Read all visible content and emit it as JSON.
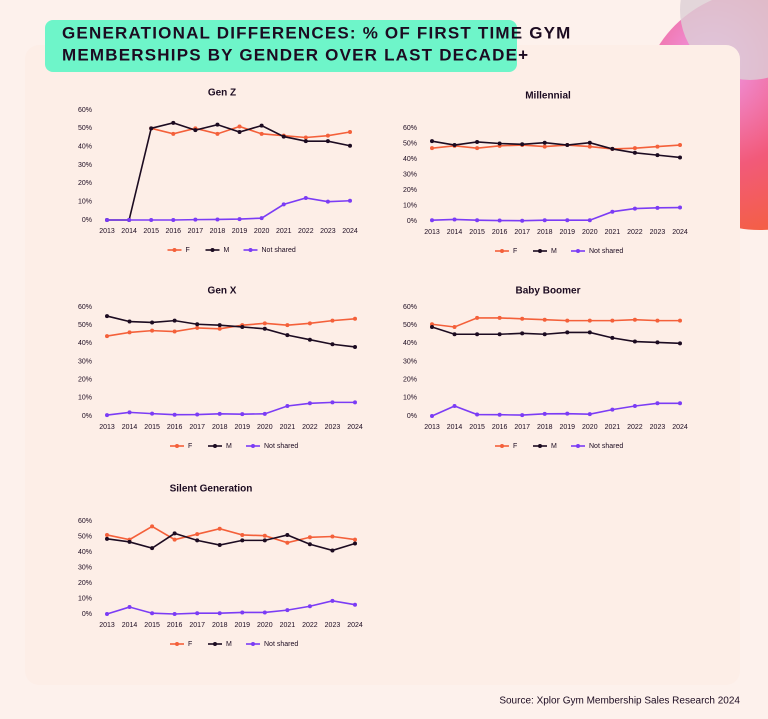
{
  "header": {
    "title_lines": [
      "GENERATIONAL DIFFERENCES: % OF FIRST TIME GYM",
      "MEMBERSHIPS BY GENDER OVER LAST DECADE+"
    ]
  },
  "source": "Source: Xplor Gym Membership Sales Research 2024",
  "chart_data": [
    {
      "type": "line",
      "title": "Gen Z",
      "categories": [
        "2013",
        "2014",
        "2015",
        "2016",
        "2017",
        "2018",
        "2019",
        "2020",
        "2021",
        "2022",
        "2023",
        "2024"
      ],
      "ylim": [
        0,
        60
      ],
      "yticks": [
        {
          "value": 0,
          "label": "0%"
        },
        {
          "value": 10,
          "label": "10%"
        },
        {
          "value": 20,
          "label": "20%"
        },
        {
          "value": 30,
          "label": "30%"
        },
        {
          "value": 40,
          "label": "40%"
        },
        {
          "value": 50,
          "label": "50%"
        },
        {
          "value": 60,
          "label": "60%"
        }
      ],
      "series": [
        {
          "name": "F",
          "color": "#f4603a",
          "values": [
            null,
            null,
            50,
            47,
            50,
            47,
            51,
            47,
            46,
            45,
            46,
            48
          ]
        },
        {
          "name": "M",
          "color": "#1c0b21",
          "values": [
            0,
            0,
            50,
            53,
            49,
            52,
            48,
            51.5,
            45.5,
            43,
            43,
            40.5
          ]
        },
        {
          "name": "Not shared",
          "color": "#7b3cf5",
          "values": [
            0,
            0,
            0,
            0,
            0.2,
            0.3,
            0.5,
            1,
            8.5,
            12,
            10,
            10.5
          ]
        }
      ]
    },
    {
      "type": "line",
      "title": "Millennial",
      "categories": [
        "2013",
        "2014",
        "2015",
        "2016",
        "2017",
        "2018",
        "2019",
        "2020",
        "2021",
        "2022",
        "2023",
        "2024"
      ],
      "ylim": [
        0,
        60
      ],
      "yticks": [
        {
          "value": 0,
          "label": "0%"
        },
        {
          "value": 10,
          "label": "10%"
        },
        {
          "value": 20,
          "label": "20%"
        },
        {
          "value": 30,
          "label": "30%"
        },
        {
          "value": 40,
          "label": "40%"
        },
        {
          "value": 50,
          "label": "50%"
        },
        {
          "value": 60,
          "label": "60%"
        }
      ],
      "series": [
        {
          "name": "F",
          "color": "#f4603a",
          "values": [
            47,
            48.5,
            47,
            48.5,
            49,
            48,
            49,
            48,
            46.5,
            47,
            48,
            49
          ]
        },
        {
          "name": "M",
          "color": "#1c0b21",
          "values": [
            51.5,
            49,
            51,
            50,
            49.5,
            50.5,
            49,
            50.5,
            46.5,
            44,
            42.5,
            41
          ]
        },
        {
          "name": "Not shared",
          "color": "#7b3cf5",
          "values": [
            0.5,
            1,
            0.5,
            0.3,
            0.2,
            0.5,
            0.5,
            0.5,
            6,
            8,
            8.5,
            8.7
          ]
        }
      ]
    },
    {
      "type": "line",
      "title": "Gen X",
      "categories": [
        "2013",
        "2014",
        "2015",
        "2016",
        "2017",
        "2018",
        "2019",
        "2020",
        "2021",
        "2022",
        "2023",
        "2024"
      ],
      "ylim": [
        0,
        60
      ],
      "yticks": [
        {
          "value": 0,
          "label": "0%"
        },
        {
          "value": 10,
          "label": "10%"
        },
        {
          "value": 20,
          "label": "20%"
        },
        {
          "value": 30,
          "label": "30%"
        },
        {
          "value": 40,
          "label": "40%"
        },
        {
          "value": 50,
          "label": "50%"
        },
        {
          "value": 60,
          "label": "60%"
        }
      ],
      "series": [
        {
          "name": "F",
          "color": "#f4603a",
          "values": [
            44,
            46,
            47,
            46.5,
            48.5,
            48,
            50,
            51,
            50,
            51,
            52.5,
            53.5
          ]
        },
        {
          "name": "M",
          "color": "#1c0b21",
          "values": [
            55,
            52,
            51.5,
            52.5,
            50.5,
            50,
            49,
            48,
            44.5,
            42,
            39.5,
            38
          ]
        },
        {
          "name": "Not shared",
          "color": "#7b3cf5",
          "values": [
            0.5,
            2,
            1.3,
            0.7,
            0.8,
            1.2,
            1,
            1.2,
            5.5,
            7,
            7.5,
            7.5
          ]
        }
      ]
    },
    {
      "type": "line",
      "title": "Baby Boomer",
      "categories": [
        "2013",
        "2014",
        "2015",
        "2016",
        "2017",
        "2018",
        "2019",
        "2020",
        "2021",
        "2022",
        "2023",
        "2024"
      ],
      "ylim": [
        0,
        60
      ],
      "yticks": [
        {
          "value": 0,
          "label": "0%"
        },
        {
          "value": 10,
          "label": "10%"
        },
        {
          "value": 20,
          "label": "20%"
        },
        {
          "value": 30,
          "label": "30%"
        },
        {
          "value": 40,
          "label": "40%"
        },
        {
          "value": 50,
          "label": "50%"
        },
        {
          "value": 60,
          "label": "60%"
        }
      ],
      "series": [
        {
          "name": "F",
          "color": "#f4603a",
          "values": [
            50.5,
            49,
            54,
            54,
            53.5,
            53,
            52.5,
            52.5,
            52.5,
            53,
            52.5,
            52.5
          ]
        },
        {
          "name": "M",
          "color": "#1c0b21",
          "values": [
            49,
            45,
            45,
            45,
            45.5,
            45,
            46,
            46,
            43,
            41,
            40.5,
            40
          ]
        },
        {
          "name": "Not shared",
          "color": "#7b3cf5",
          "values": [
            0,
            5.5,
            0.8,
            0.7,
            0.5,
            1.2,
            1.3,
            1,
            3.5,
            5.5,
            7,
            7
          ]
        }
      ]
    },
    {
      "type": "line",
      "title": "Silent Generation",
      "categories": [
        "2013",
        "2014",
        "2015",
        "2016",
        "2017",
        "2018",
        "2019",
        "2020",
        "2021",
        "2022",
        "2023",
        "2024"
      ],
      "ylim": [
        0,
        60
      ],
      "yticks": [
        {
          "value": 0,
          "label": "0%"
        },
        {
          "value": 10,
          "label": "10%"
        },
        {
          "value": 20,
          "label": "20%"
        },
        {
          "value": 30,
          "label": "30%"
        },
        {
          "value": 40,
          "label": "40%"
        },
        {
          "value": 50,
          "label": "50%"
        },
        {
          "value": 60,
          "label": "60%"
        }
      ],
      "series": [
        {
          "name": "F",
          "color": "#f4603a",
          "values": [
            51,
            48,
            56.5,
            48,
            51.5,
            55,
            51,
            50.5,
            46,
            49.5,
            50,
            48
          ]
        },
        {
          "name": "M",
          "color": "#1c0b21",
          "values": [
            48.5,
            46.5,
            42.5,
            52,
            47.5,
            44.5,
            47.5,
            47.5,
            51,
            45,
            41,
            45.5
          ]
        },
        {
          "name": "Not shared",
          "color": "#7b3cf5",
          "values": [
            0,
            4.5,
            0.5,
            0,
            0.5,
            0.5,
            1,
            1,
            2.5,
            5,
            8.5,
            6
          ]
        }
      ]
    }
  ]
}
